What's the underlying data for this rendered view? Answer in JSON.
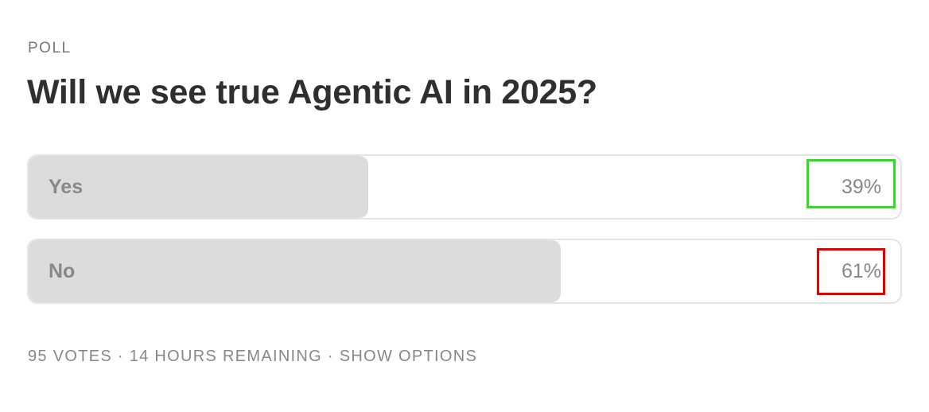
{
  "kicker": "POLL",
  "question": "Will we see true Agentic AI in 2025?",
  "options": [
    {
      "label": "Yes",
      "value": 39,
      "value_label": "39%"
    },
    {
      "label": "No",
      "value": 61,
      "value_label": "61%"
    }
  ],
  "footer": {
    "votes": "95 VOTES",
    "separator": "·",
    "time": "14 HOURS REMAINING",
    "action": "SHOW OPTIONS"
  }
}
